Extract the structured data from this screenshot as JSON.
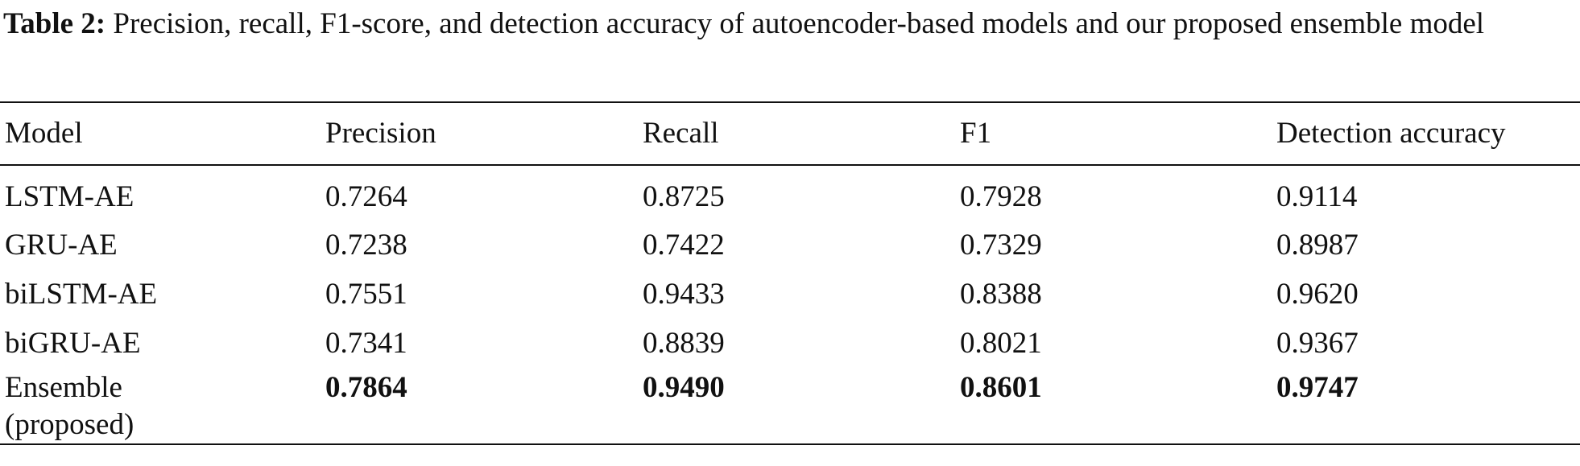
{
  "caption": {
    "label": "Table 2:",
    "text": "Precision, recall, F1-score, and detection accuracy of autoencoder-based models and our proposed ensemble model"
  },
  "table": {
    "header": [
      "Model",
      "Precision",
      "Recall",
      "F1",
      "Detection accuracy"
    ],
    "rows": [
      [
        "LSTM-AE",
        "0.7264",
        "0.8725",
        "0.7928",
        "0.9114"
      ],
      [
        "GRU-AE",
        "0.7238",
        "0.7422",
        "0.7329",
        "0.8987"
      ],
      [
        "biLSTM-AE",
        "0.7551",
        "0.9433",
        "0.8388",
        "0.9620"
      ],
      [
        "biGRU-AE",
        "0.7341",
        "0.8839",
        "0.8021",
        "0.9367"
      ],
      [
        "Ensemble (proposed)",
        "0.7864",
        "0.9490",
        "0.8601",
        "0.9747"
      ]
    ],
    "bold_row": 4
  }
}
